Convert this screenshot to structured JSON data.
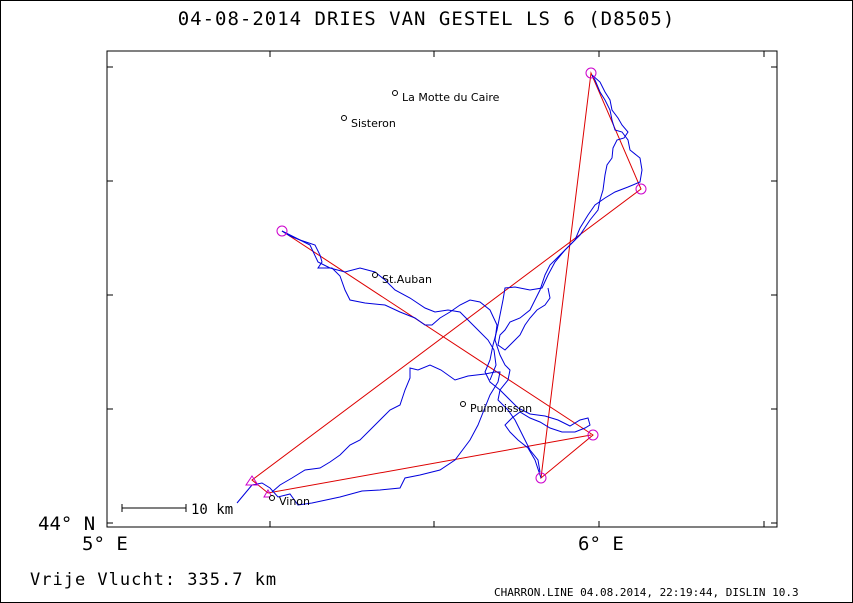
{
  "header": {
    "title": "04-08-2014   DRIES VAN GESTEL   LS 6 (D8505)"
  },
  "map": {
    "lat_label": "44° N",
    "lon_labels": [
      "5° E",
      "6° E"
    ],
    "scale_bar_label": "10 km",
    "places": [
      {
        "name": "La Motte du Caire"
      },
      {
        "name": "Sisteron"
      },
      {
        "name": "St.Auban"
      },
      {
        "name": "Puimoisson"
      },
      {
        "name": "Vinon"
      }
    ],
    "colors": {
      "track": "#0000dd",
      "task": "#dd0000",
      "turnpoint": "#cc00cc"
    }
  },
  "footer": {
    "distance": "Vrije Vlucht:  335.7 km",
    "credit": "CHARRON.LINE 04.08.2014, 22:19:44, DISLIN 10.3"
  }
}
